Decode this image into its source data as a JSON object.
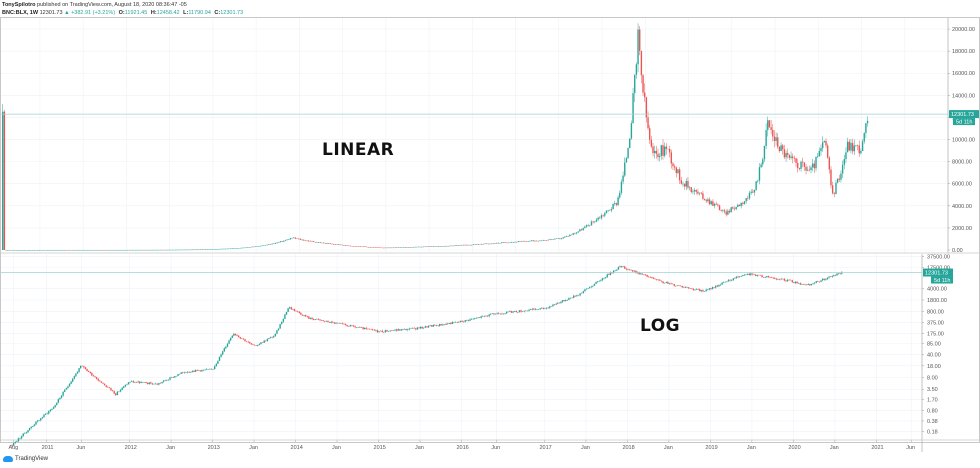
{
  "header": {
    "author": "TonySpilotro",
    "published_text": "published on TradingView.com, August 18, 2020 08:36:47 -05",
    "symbol": "BNC:BLX, 1W",
    "last": "12301.73",
    "change_arrow": "▲",
    "change": "+382.91 (+3.21%)",
    "ohlc": [
      {
        "k": "O:",
        "v": "11921.45"
      },
      {
        "k": "H:",
        "v": "12458.42"
      },
      {
        "k": "L:",
        "v": "11790.94"
      },
      {
        "k": "C:",
        "v": "12301.73"
      }
    ]
  },
  "annotations": {
    "linear_label": "LINEAR",
    "log_label": "LOG"
  },
  "price_tags": {
    "last_price": "12301.73",
    "countdown": "5d 11h"
  },
  "colors": {
    "up": "#26a69a",
    "down": "#ef5350",
    "grid": "#eef2f7",
    "price_line": "#9fd3d0",
    "tag_bg": "#26a69a"
  },
  "footer": {
    "brand": "TradingView"
  },
  "chart_data": [
    {
      "type": "candlestick",
      "title": "BNC:BLX 1W — LINEAR",
      "scale": "linear",
      "ylim": [
        0,
        21000
      ],
      "y_ticks": [
        "20000.00",
        "18000.00",
        "16000.00",
        "14000.00",
        "12000.00",
        "10000.00",
        "8000.00",
        "6000.00",
        "4000.00",
        "2000.00",
        "0.00"
      ],
      "x_ticks": [],
      "series_points": [
        {
          "t": "2010-08",
          "v": 0.07
        },
        {
          "t": "2013-12",
          "v": 1100
        },
        {
          "t": "2015-01",
          "v": 200
        },
        {
          "t": "2016-06",
          "v": 700
        },
        {
          "t": "2017-01",
          "v": 1000
        },
        {
          "t": "2017-06",
          "v": 2700
        },
        {
          "t": "2017-09",
          "v": 4300
        },
        {
          "t": "2017-12",
          "v": 19000
        },
        {
          "t": "2018-02",
          "v": 8500
        },
        {
          "t": "2018-04",
          "v": 9300
        },
        {
          "t": "2018-06",
          "v": 6300
        },
        {
          "t": "2018-11",
          "v": 4000
        },
        {
          "t": "2018-12",
          "v": 3300
        },
        {
          "t": "2019-04",
          "v": 5200
        },
        {
          "t": "2019-06",
          "v": 11500
        },
        {
          "t": "2019-07",
          "v": 10000
        },
        {
          "t": "2019-09",
          "v": 8200
        },
        {
          "t": "2019-12",
          "v": 7200
        },
        {
          "t": "2020-02",
          "v": 10000
        },
        {
          "t": "2020-03",
          "v": 5000
        },
        {
          "t": "2020-05",
          "v": 9500
        },
        {
          "t": "2020-07",
          "v": 9200
        },
        {
          "t": "2020-08",
          "v": 12301.73
        }
      ],
      "last_value": 12301.73
    },
    {
      "type": "candlestick",
      "title": "BNC:BLX 1W — LOG",
      "scale": "log",
      "y_ticks": [
        "37500.00",
        "17500.00",
        "4000.00",
        "1800.00",
        "800.00",
        "375.00",
        "175.00",
        "85.00",
        "40.00",
        "18.00",
        "8.00",
        "3.50",
        "1.70",
        "0.80",
        "0.38",
        "0.18"
      ],
      "x_ticks": [
        "Aug",
        "2011",
        "Jun",
        "2012",
        "Jan",
        "2013",
        "Jan",
        "2014",
        "Jan",
        "2015",
        "Jan",
        "2016",
        "Jun",
        "2017",
        "Jan",
        "2018",
        "Jan",
        "2019",
        "Jan",
        "2020",
        "Jan",
        "2021",
        "Jun"
      ],
      "series_points": [
        {
          "t": "2010-08",
          "v": 0.07
        },
        {
          "t": "2010-11",
          "v": 0.28
        },
        {
          "t": "2011-02",
          "v": 1.0
        },
        {
          "t": "2011-06",
          "v": 18
        },
        {
          "t": "2011-11",
          "v": 2.5
        },
        {
          "t": "2012-01",
          "v": 6
        },
        {
          "t": "2012-05",
          "v": 5
        },
        {
          "t": "2012-09",
          "v": 12
        },
        {
          "t": "2013-01",
          "v": 14
        },
        {
          "t": "2013-04",
          "v": 180
        },
        {
          "t": "2013-07",
          "v": 70
        },
        {
          "t": "2013-10",
          "v": 150
        },
        {
          "t": "2013-12",
          "v": 1100
        },
        {
          "t": "2014-03",
          "v": 500
        },
        {
          "t": "2015-01",
          "v": 200
        },
        {
          "t": "2015-06",
          "v": 240
        },
        {
          "t": "2016-01",
          "v": 400
        },
        {
          "t": "2016-06",
          "v": 700
        },
        {
          "t": "2017-01",
          "v": 1000
        },
        {
          "t": "2017-06",
          "v": 2700
        },
        {
          "t": "2017-12",
          "v": 19000
        },
        {
          "t": "2018-06",
          "v": 6300
        },
        {
          "t": "2018-12",
          "v": 3300
        },
        {
          "t": "2019-06",
          "v": 11500
        },
        {
          "t": "2019-12",
          "v": 7200
        },
        {
          "t": "2020-03",
          "v": 5000
        },
        {
          "t": "2020-08",
          "v": 12301.73
        }
      ],
      "last_value": 12301.73
    }
  ]
}
